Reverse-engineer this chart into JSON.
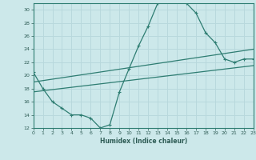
{
  "xlabel": "Humidex (Indice chaleur)",
  "bg_color": "#cce8ea",
  "grid_color": "#b0d0d4",
  "line_color": "#2e7d72",
  "x_min": 0,
  "x_max": 23,
  "y_min": 12,
  "y_max": 31,
  "curve1_x": [
    0,
    1,
    2,
    3,
    4,
    5,
    6,
    7,
    8,
    9,
    10,
    11,
    12,
    13,
    14,
    15,
    16,
    17,
    18,
    19,
    20,
    21,
    22,
    23
  ],
  "curve1_y": [
    20.5,
    18.0,
    16.0,
    15.0,
    14.0,
    14.0,
    13.5,
    12.0,
    12.5,
    17.5,
    21.0,
    24.5,
    27.5,
    31.0,
    31.5,
    31.5,
    31.0,
    29.5,
    26.5,
    25.0,
    22.5,
    22.0,
    22.5,
    22.5
  ],
  "curve2_x": [
    0,
    23
  ],
  "curve2_y": [
    19.0,
    24.0
  ],
  "curve3_x": [
    0,
    23
  ],
  "curve3_y": [
    17.5,
    21.5
  ],
  "yticks": [
    12,
    14,
    16,
    18,
    20,
    22,
    24,
    26,
    28,
    30
  ],
  "xticks": [
    0,
    1,
    2,
    3,
    4,
    5,
    6,
    7,
    8,
    9,
    10,
    11,
    12,
    13,
    14,
    15,
    16,
    17,
    18,
    19,
    20,
    21,
    22,
    23
  ]
}
